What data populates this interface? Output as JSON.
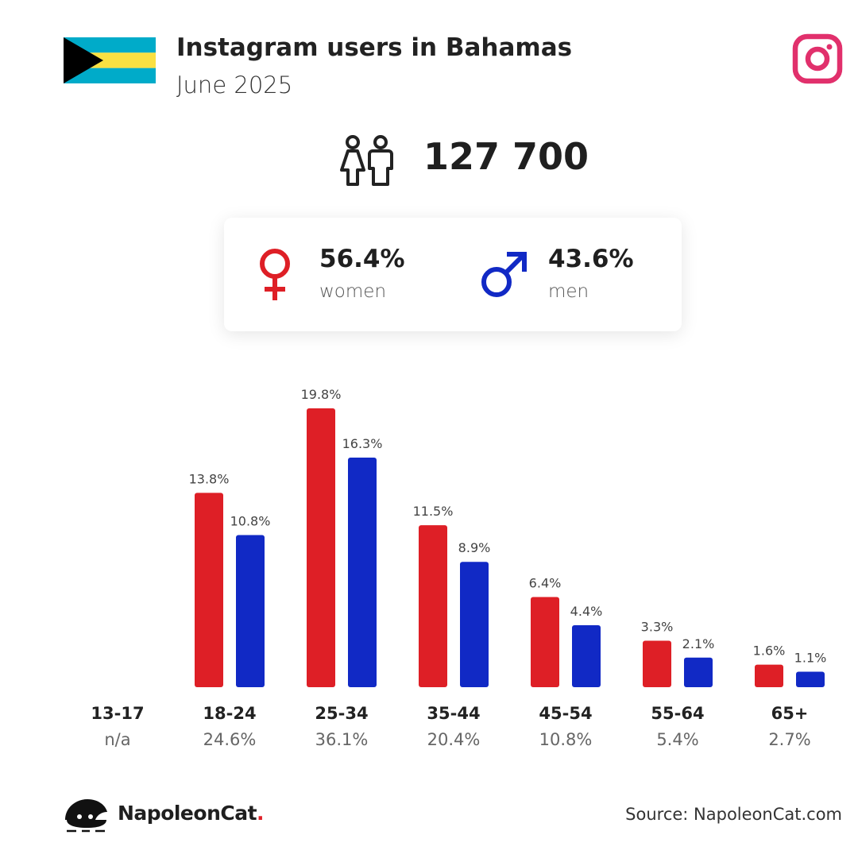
{
  "header": {
    "title": "Instagram users in Bahamas",
    "subtitle": "June 2025"
  },
  "icons": {
    "flag": "bahamas-flag-icon",
    "platform": "instagram-icon",
    "users": "people-icon",
    "female": "female-symbol-icon",
    "male": "male-symbol-icon",
    "brand": "napoleoncat-logo-icon"
  },
  "total": {
    "value": "127 700"
  },
  "gender": {
    "women_pct": "56.4%",
    "women_label": "women",
    "men_pct": "43.6%",
    "men_label": "men"
  },
  "colors": {
    "women": "#de1f26",
    "men": "#1129c5",
    "instagram": "#e1306c",
    "flag_aqua": "#00abc9",
    "flag_gold": "#fae042",
    "flag_black": "#000000"
  },
  "chart_data": {
    "type": "bar",
    "categories": [
      "13-17",
      "18-24",
      "25-34",
      "35-44",
      "45-54",
      "55-64",
      "65+"
    ],
    "category_totals": [
      "n/a",
      "24.6%",
      "36.1%",
      "20.4%",
      "10.8%",
      "5.4%",
      "2.7%"
    ],
    "series": [
      {
        "name": "women",
        "values": [
          null,
          13.8,
          19.8,
          11.5,
          6.4,
          3.3,
          1.6
        ],
        "labels": [
          "",
          "13.8%",
          "19.8%",
          "11.5%",
          "6.4%",
          "3.3%",
          "1.6%"
        ],
        "color": "#de1f26"
      },
      {
        "name": "men",
        "values": [
          null,
          10.8,
          16.3,
          8.9,
          4.4,
          2.1,
          1.1
        ],
        "labels": [
          "",
          "10.8%",
          "16.3%",
          "8.9%",
          "4.4%",
          "2.1%",
          "1.1%"
        ],
        "color": "#1129c5"
      }
    ],
    "ylim": [
      0,
      19.8
    ],
    "grid": false,
    "legend": "none"
  },
  "footer": {
    "brand": "NapoleonCat",
    "brand_dot": ".",
    "source": "Source: NapoleonCat.com"
  }
}
